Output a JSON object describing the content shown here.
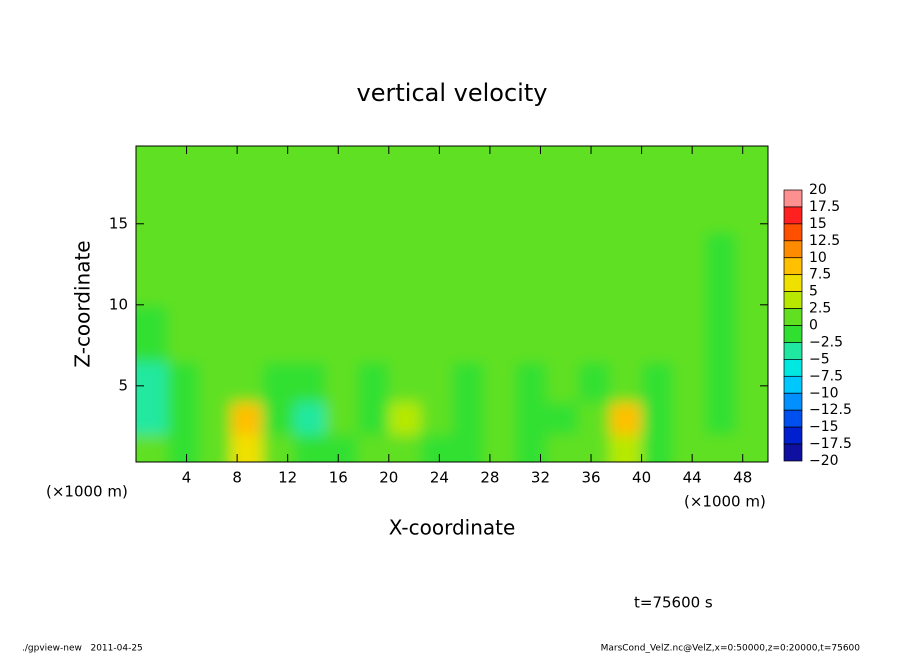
{
  "chart_data": {
    "type": "heatmap",
    "title": "vertical velocity",
    "x_label": "X-coordinate",
    "y_label": "Z-coordinate",
    "x_unit_label": "(×1000 m)",
    "annotation": "t=75600 s",
    "footer_left": "./gpview-new   2011-04-25",
    "footer_right": "MarsCond_VelZ.nc@VelZ,x=0:50000,z=0:20000,t=75600",
    "xlim": [
      0,
      50
    ],
    "ylim": [
      0.3,
      19.8
    ],
    "xticks": [
      4,
      8,
      12,
      16,
      20,
      24,
      28,
      32,
      36,
      40,
      44,
      48
    ],
    "yticks": [
      5,
      10,
      15
    ],
    "x": [
      1.25,
      3.75,
      6.25,
      8.75,
      11.25,
      13.75,
      16.25,
      18.75,
      21.25,
      23.75,
      26.25,
      28.75,
      31.25,
      33.75,
      36.25,
      38.75,
      41.25,
      43.75,
      46.25,
      48.75
    ],
    "y": [
      1,
      3,
      5,
      8,
      12,
      17
    ],
    "values": [
      [
        1,
        -1,
        2,
        6,
        1,
        -2,
        -1,
        2,
        1,
        -1,
        -2,
        1,
        -1,
        1,
        2,
        4,
        -1,
        1,
        2,
        1
      ],
      [
        -4,
        -2,
        1,
        9,
        -2,
        -3,
        1,
        -1,
        3,
        1,
        -2,
        2,
        -1,
        -2,
        1,
        9,
        -2,
        2,
        -1,
        1
      ],
      [
        -3,
        -1,
        1,
        2,
        -1,
        -1,
        1,
        -2,
        2,
        1,
        -1,
        1,
        -1,
        1,
        -1,
        2,
        -1,
        1,
        -2,
        1
      ],
      [
        -1,
        1,
        1,
        1,
        1,
        1,
        1,
        1,
        1,
        1,
        1,
        1,
        1,
        1,
        1,
        1,
        1,
        1,
        -2,
        1
      ],
      [
        1,
        1,
        1,
        1,
        1,
        1,
        1,
        1,
        1,
        1,
        1,
        1,
        1,
        1,
        1,
        1,
        1,
        1,
        -1,
        1
      ],
      [
        1,
        1,
        1,
        1,
        1,
        1,
        1,
        1,
        1,
        1,
        1,
        1,
        1,
        1,
        1,
        1,
        1,
        1,
        1,
        1
      ]
    ],
    "colorbar": {
      "levels": [
        20,
        17.5,
        15,
        12.5,
        10,
        7.5,
        5,
        2.5,
        0,
        {
          "value": -2.5,
          "label": "−2.5"
        },
        {
          "value": -5,
          "label": "−5"
        },
        {
          "value": -7.5,
          "label": "−7.5"
        },
        {
          "value": -10,
          "label": "−10"
        },
        {
          "value": -12.5,
          "label": "−12.5"
        },
        {
          "value": -15,
          "label": "−15"
        },
        {
          "value": -17.5,
          "label": "−17.5"
        },
        {
          "value": -20,
          "label": "−20"
        }
      ],
      "colors": [
        "#ff9090",
        "#ff2020",
        "#ff5000",
        "#ff8c00",
        "#ffc000",
        "#f0e000",
        "#b8e800",
        "#60e020",
        "#30e030",
        "#20e8a0",
        "#00e8e0",
        "#00c8ff",
        "#0090ff",
        "#0050f0",
        "#0020d0",
        "#1010a0"
      ]
    }
  }
}
